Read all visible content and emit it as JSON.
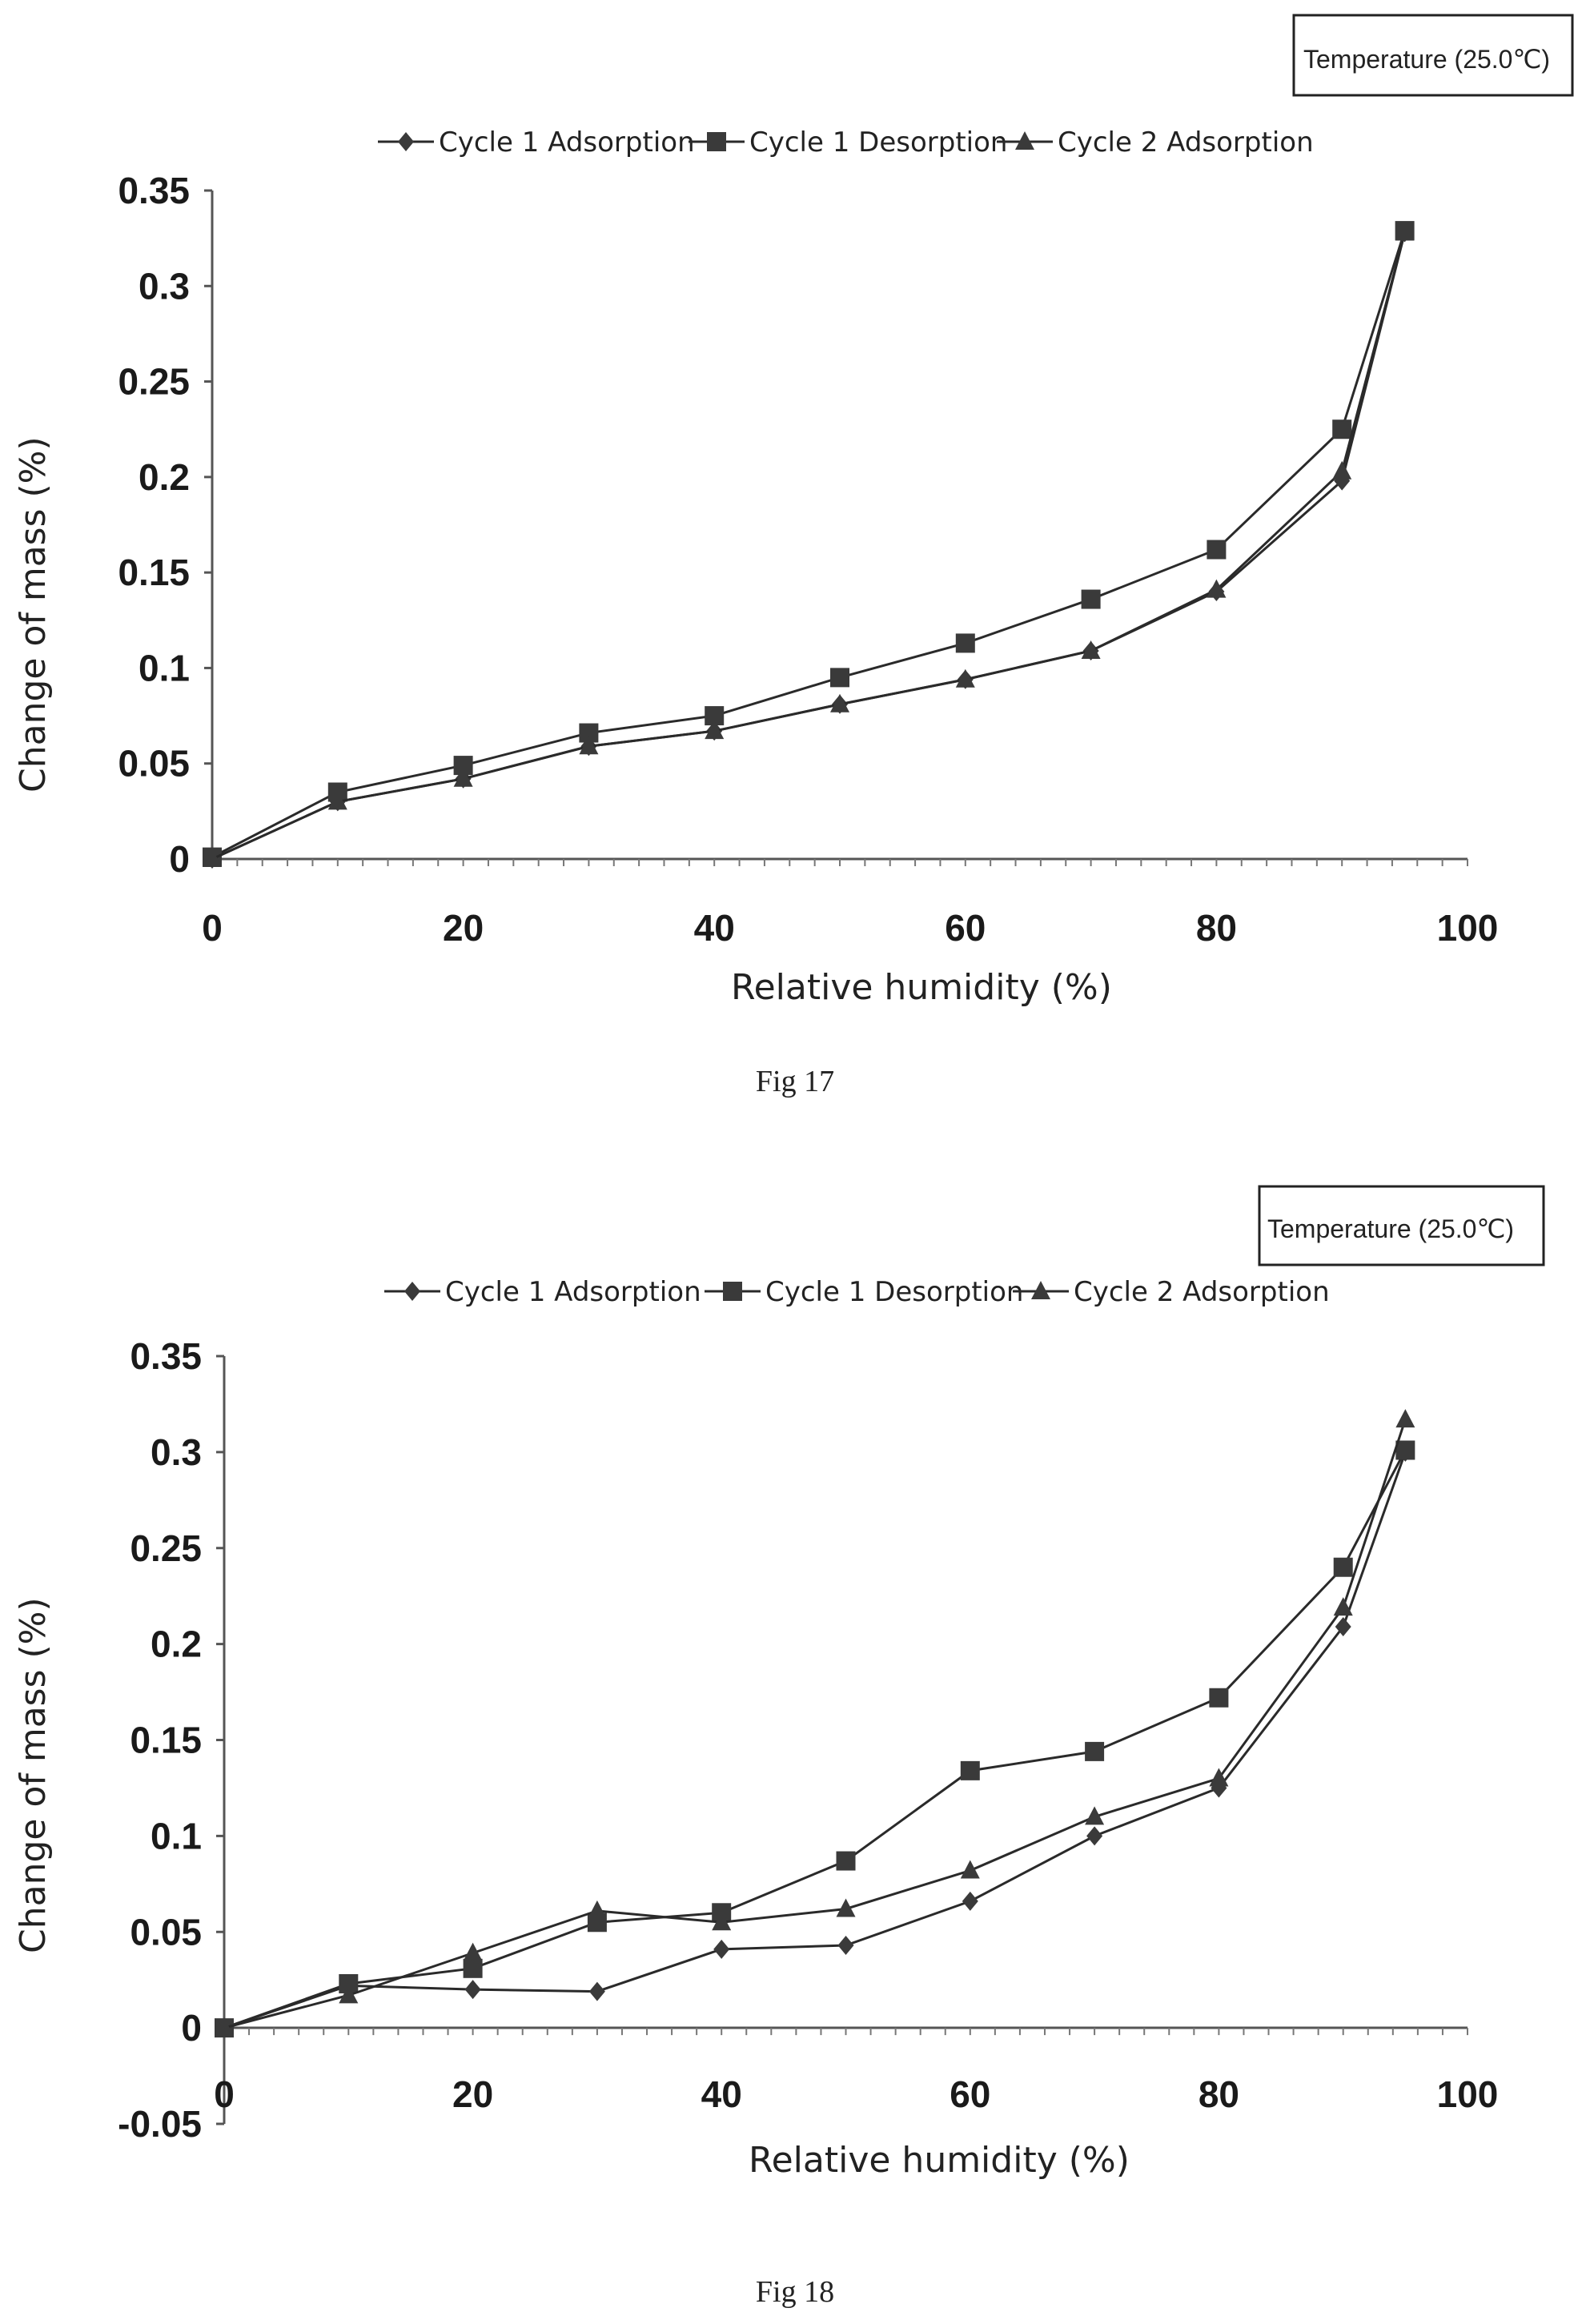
{
  "chart_data": [
    {
      "type": "line",
      "caption": "Fig 17",
      "note": "Temperature (25.0℃)",
      "xlabel": "Relative  humidity  (%)",
      "ylabel": "Change of mass (%)",
      "xlim": [
        0,
        100
      ],
      "ylim": [
        0,
        0.35
      ],
      "xticks": [
        "0",
        "20",
        "40",
        "60",
        "80",
        "100"
      ],
      "yticks": [
        "0",
        "0.05",
        "0.1",
        "0.15",
        "0.2",
        "0.25",
        "0.3",
        "0.35"
      ],
      "grid": false,
      "legend_position": "top",
      "x": [
        0,
        10,
        20,
        30,
        40,
        50,
        60,
        70,
        80,
        90,
        95
      ],
      "series": [
        {
          "name": "Cycle 1 Adsorption",
          "marker": "diamond",
          "values": [
            0.0,
            0.03,
            0.042,
            0.059,
            0.067,
            0.081,
            0.094,
            0.109,
            0.14,
            0.198,
            0.328
          ]
        },
        {
          "name": "Cycle 1 Desorption",
          "marker": "square",
          "values": [
            0.001,
            0.035,
            0.049,
            0.066,
            0.075,
            0.095,
            0.113,
            0.136,
            0.162,
            0.225,
            0.329
          ]
        },
        {
          "name": "Cycle 2 Adsorption",
          "marker": "triangle",
          "values": [
            0.0,
            0.03,
            0.042,
            0.059,
            0.067,
            0.081,
            0.094,
            0.109,
            0.141,
            0.203,
            0.328
          ]
        }
      ]
    },
    {
      "type": "line",
      "caption": "Fig 18",
      "note": "Temperature (25.0℃)",
      "xlabel": "Relative  humidity  (%)",
      "ylabel": "Change of mass (%)",
      "xlim": [
        0,
        100
      ],
      "ylim": [
        -0.05,
        0.35
      ],
      "xticks": [
        "0",
        "20",
        "40",
        "60",
        "80",
        "100"
      ],
      "yticks": [
        "-0.05",
        "0",
        "0.05",
        "0.1",
        "0.15",
        "0.2",
        "0.25",
        "0.3",
        "0.35"
      ],
      "grid": false,
      "legend_position": "top",
      "x": [
        0,
        10,
        20,
        30,
        40,
        50,
        60,
        70,
        80,
        90,
        95
      ],
      "series": [
        {
          "name": "Cycle 1 Adsorption",
          "marker": "diamond",
          "values": [
            0.0,
            0.022,
            0.02,
            0.019,
            0.041,
            0.043,
            0.066,
            0.1,
            0.125,
            0.209,
            0.3
          ]
        },
        {
          "name": "Cycle 1 Desorption",
          "marker": "square",
          "values": [
            0.0,
            0.023,
            0.031,
            0.055,
            0.06,
            0.087,
            0.134,
            0.144,
            0.172,
            0.24,
            0.301
          ]
        },
        {
          "name": "Cycle 2 Adsorption",
          "marker": "triangle",
          "values": [
            0.0,
            0.017,
            0.039,
            0.061,
            0.055,
            0.062,
            0.082,
            0.11,
            0.13,
            0.219,
            0.317
          ]
        }
      ]
    }
  ]
}
